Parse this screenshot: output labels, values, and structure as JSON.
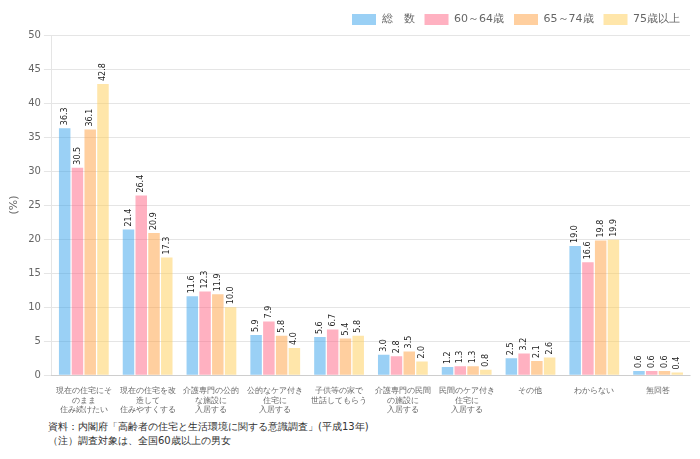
{
  "chart_data": {
    "type": "bar",
    "categories": [
      "現在の住宅にそのまま\n住み続けたい",
      "現在の住宅を改造して\n住みやすくする",
      "介護専門の公的な施設に\n入居する",
      "公的なケア付き住宅に\n入居する",
      "子供等の家で\n世話してもらう",
      "介護専門の民間の施設に\n入居する",
      "民間のケア付き住宅に\n入居する",
      "その他",
      "わからない",
      "無回答"
    ],
    "series": [
      {
        "name": "総　数",
        "values": [
          36.3,
          21.4,
          11.6,
          5.9,
          5.6,
          3.0,
          1.2,
          2.5,
          19.0,
          0.6
        ],
        "value_labels": [
          "36.3",
          "21.4",
          "11.6",
          "5.9",
          "5.6",
          "3.0",
          "1.2",
          "2.5",
          "19.0",
          "0.6"
        ]
      },
      {
        "name": "60～64歳",
        "values": [
          30.5,
          26.4,
          12.3,
          7.9,
          6.7,
          2.8,
          1.3,
          3.2,
          16.6,
          0.6
        ],
        "value_labels": [
          "30.5",
          "26.4",
          "12.3",
          "7.9",
          "6.7",
          "2.8",
          "1.3",
          "3.2",
          "16.6",
          "0.6"
        ]
      },
      {
        "name": "65～74歳",
        "values": [
          36.1,
          20.9,
          11.9,
          5.8,
          5.4,
          3.5,
          1.3,
          2.1,
          19.8,
          0.6
        ],
        "value_labels": [
          "36.1",
          "20.9",
          "11.9",
          "5.8",
          "5.4",
          "3.5",
          "1.3",
          "2.1",
          "19.8",
          "0.6"
        ]
      },
      {
        "name": "75歳以上",
        "values": [
          42.8,
          17.3,
          10.0,
          4.0,
          5.8,
          2.0,
          0.8,
          2.6,
          19.9,
          0.4
        ],
        "value_labels": [
          "42.8",
          "17.3",
          "10.0",
          "4.0",
          "5.8",
          "2.0",
          "0.8",
          "2.6",
          "19.9",
          "0.4"
        ]
      }
    ],
    "y_label": "(%)",
    "ylim": [
      0,
      50
    ],
    "yticks": [
      0,
      5,
      10,
      15,
      20,
      25,
      30,
      35,
      40,
      45,
      50
    ],
    "grid": true,
    "legend": "upper right",
    "data_labels": true,
    "annotations": [
      "資料：内閣府「高齢者の住宅と生活環境に関する意識調査」(平成13年)",
      "（注）調査対象は、全国60歳以上の男女"
    ]
  }
}
